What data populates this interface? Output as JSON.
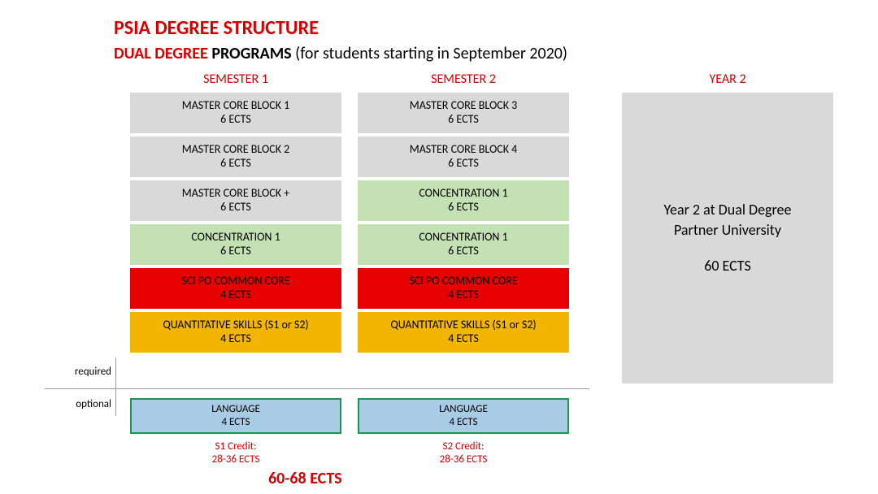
{
  "title": "PSIA DEGREE STRUCTURE",
  "subtitle": {
    "red": "DUAL DEGREE ",
    "bold": "PROGRAMS ",
    "rest": "(for students starting in September 2020)"
  },
  "headers": {
    "sem1": "SEMESTER 1",
    "sem2": "SEMESTER 2",
    "year2": "YEAR 2"
  },
  "colors": {
    "gray": "#d9d9d9",
    "green": "#c4e1b4",
    "red": "#e60000",
    "orange": "#f2b600",
    "blue": "#a8cbe6",
    "accent_red": "#d60000",
    "border_green": "#1a9850"
  },
  "sem1": [
    {
      "l1": "MASTER CORE BLOCK 1",
      "l2": "6 ECTS",
      "color": "gray"
    },
    {
      "l1": "MASTER CORE BLOCK 2",
      "l2": "6 ECTS",
      "color": "gray"
    },
    {
      "l1": "MASTER CORE BLOCK +",
      "l2": "6 ECTS",
      "color": "gray"
    },
    {
      "l1": "CONCENTRATION 1",
      "l2": "6 ECTS",
      "color": "green"
    },
    {
      "l1": "SCI PO COMMON CORE",
      "l2": "4 ECTS",
      "color": "red"
    },
    {
      "l1": "QUANTITATIVE SKILLS (S1 or S2)",
      "l2": "4 ECTS",
      "color": "orange"
    }
  ],
  "sem2": [
    {
      "l1": "MASTER CORE BLOCK 3",
      "l2": "6 ECTS",
      "color": "gray"
    },
    {
      "l1": "MASTER CORE BLOCK 4",
      "l2": "6 ECTS",
      "color": "gray"
    },
    {
      "l1": "CONCENTRATION 1",
      "l2": "6 ECTS",
      "color": "green"
    },
    {
      "l1": "CONCENTRATION 1",
      "l2": "6 ECTS",
      "color": "green"
    },
    {
      "l1": "SCI PO COMMON CORE",
      "l2": "4 ECTS",
      "color": "red"
    },
    {
      "l1": "QUANTITATIVE SKILLS (S1 or S2)",
      "l2": "4 ECTS",
      "color": "orange"
    }
  ],
  "optional": {
    "sem1": {
      "l1": "LANGUAGE",
      "l2": "4 ECTS"
    },
    "sem2": {
      "l1": "LANGUAGE",
      "l2": "4 ECTS"
    }
  },
  "labels": {
    "required": "required",
    "optional": "optional"
  },
  "year2": {
    "line1": "Year 2 at Dual Degree",
    "line2": "Partner University",
    "ects": "60 ECTS"
  },
  "credits": {
    "s1_l1": "S1 Credit:",
    "s1_l2": "28-36 ECTS",
    "s2_l1": "S2 Credit:",
    "s2_l2": "28-36 ECTS"
  },
  "total": "60-68 ECTS"
}
